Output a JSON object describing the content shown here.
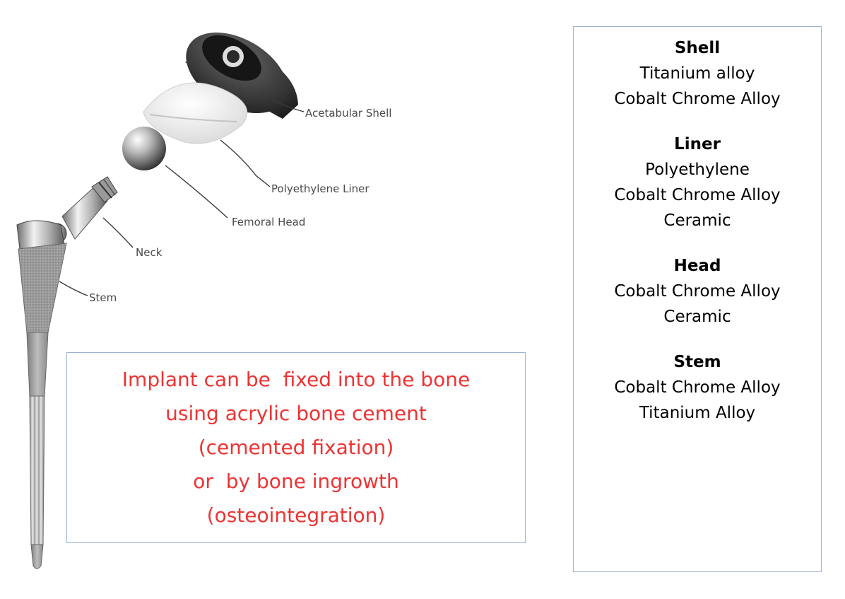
{
  "diagram": {
    "parts": {
      "acetabular_shell": "Acetabular Shell",
      "polyethylene_liner": "Polyethylene Liner",
      "femoral_head": "Femoral Head",
      "neck": "Neck",
      "stem": "Stem"
    }
  },
  "materials": [
    {
      "name": "Shell",
      "items": [
        "Titanium alloy",
        "Cobalt Chrome Alloy"
      ]
    },
    {
      "name": "Liner",
      "items": [
        "Polyethylene",
        "Cobalt Chrome Alloy",
        "Ceramic"
      ]
    },
    {
      "name": "Head",
      "items": [
        "Cobalt Chrome Alloy",
        "Ceramic"
      ]
    },
    {
      "name": "Stem",
      "items": [
        "Cobalt Chrome Alloy",
        "Titanium Alloy"
      ]
    }
  ],
  "fixation": {
    "lines": [
      "Implant can be  fixed into the bone",
      "using acrylic bone cement",
      "(cemented fixation)",
      "or  by bone ingrowth",
      "(osteointegration)"
    ],
    "color": "#ee3333"
  }
}
